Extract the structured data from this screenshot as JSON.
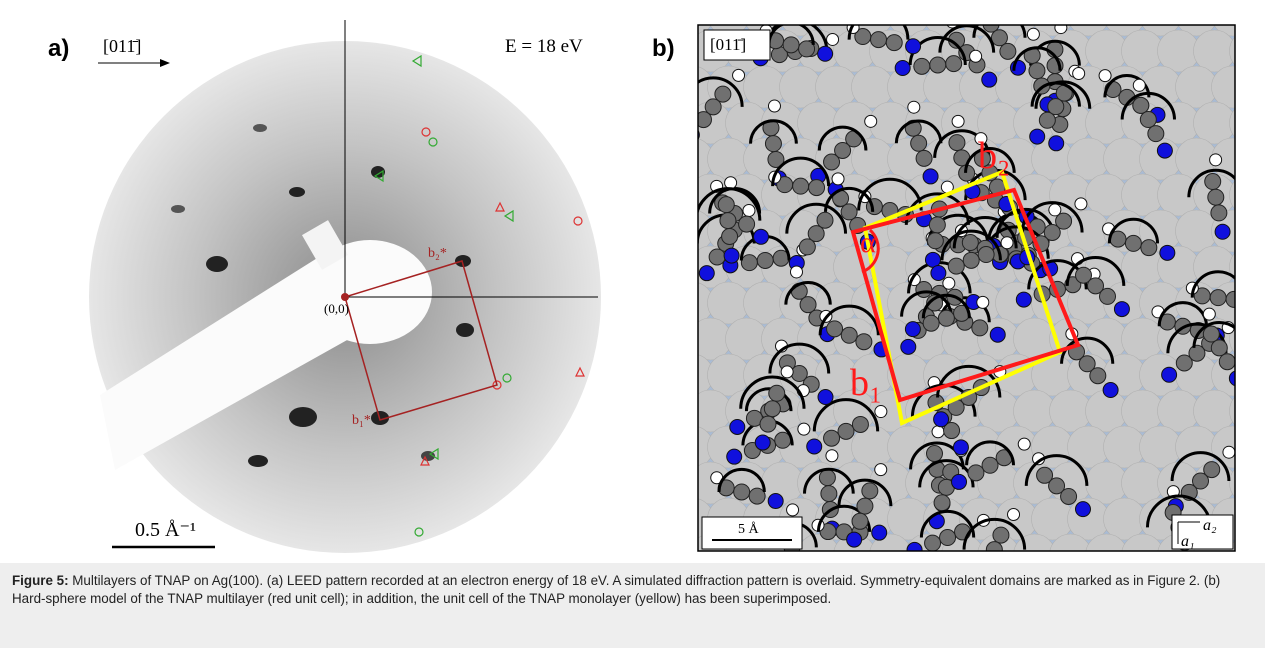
{
  "figure": {
    "panel_a": {
      "label": "a)",
      "direction": "[011̄]",
      "energy": "E = 18 eV",
      "origin": "(0,0)",
      "b1": "b₁*",
      "b2": "b₂*",
      "scale": "0.5 Å⁻¹"
    },
    "panel_b": {
      "label": "b)",
      "direction": "[011̄]",
      "b1": "b₁",
      "b2": "b₂",
      "angle": "α",
      "scale": "5 Å",
      "a1": "a₁",
      "a2": "a₂"
    }
  },
  "caption": {
    "label": "Figure 5:",
    "text": "Multilayers of TNAP on Ag(100). (a) LEED pattern recorded at an electron energy of 18 eV. A simulated diffraction pattern is overlaid. Symmetry-equivalent domains are marked as in Figure 2. (b) Hard-sphere model of the TNAP multilayer (red unit cell); in addition, the unit cell of the TNAP monolayer (yellow) has been superimposed."
  }
}
